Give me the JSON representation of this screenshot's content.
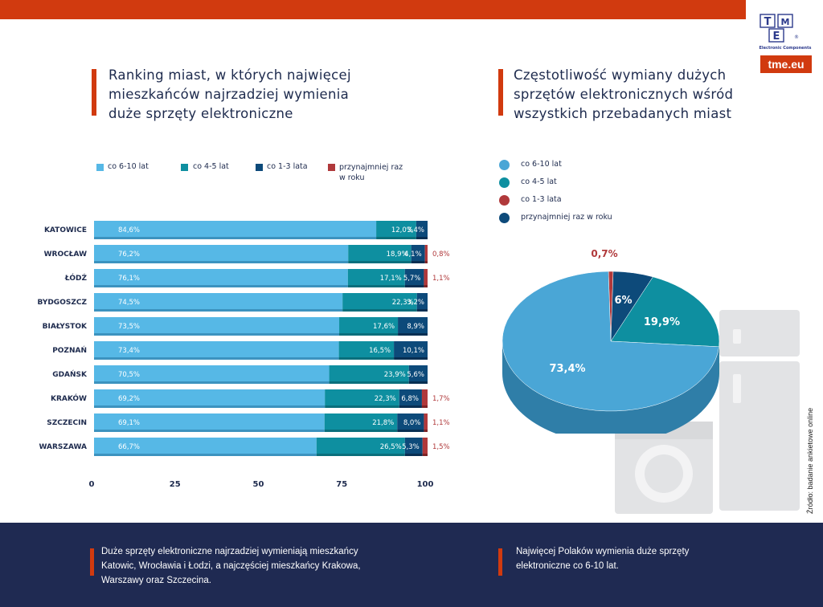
{
  "brand": {
    "logo_text": "TME",
    "logo_sub": "Electronic Components",
    "url": "tme.eu"
  },
  "left_title": [
    "Ranking miast, w których najwięcej",
    "mieszkańców najrzadziej wymienia",
    "duże sprzęty elektroniczne"
  ],
  "right_title": [
    "Częstotliwość wymiany dużych",
    "sprzętów elektronicznych wśród",
    "wszystkich przebadanych miast"
  ],
  "colors": {
    "c610": "#56b8e6",
    "c45": "#0e8fa0",
    "c13": "#0d4a7a",
    "cyear": "#b0393b",
    "accent": "#d13a0f",
    "navy": "#1f2a52"
  },
  "bar_legend": [
    {
      "label": "co 6-10 lat",
      "color": "#56b8e6"
    },
    {
      "label": "co 4-5 lat",
      "color": "#0e8fa0"
    },
    {
      "label": "co 1-3 lata",
      "color": "#0d4a7a"
    },
    {
      "label": "przynajmniej raz w roku",
      "color": "#b0393b"
    }
  ],
  "pie_legend": [
    {
      "label": "co 6-10 lat",
      "color": "#4aa6d6"
    },
    {
      "label": "co 4-5 lat",
      "color": "#0e8fa0"
    },
    {
      "label": "co 1-3 lata",
      "color": "#b0393b"
    },
    {
      "label": "przynajmniej raz w roku",
      "color": "#0d4a7a"
    }
  ],
  "chart_data": [
    {
      "type": "bar",
      "orientation": "horizontal-stacked",
      "categories": [
        "KATOWICE",
        "WROCŁAW",
        "ŁÓDŹ",
        "BYDGOSZCZ",
        "BIAŁYSTOK",
        "POZNAŃ",
        "GDAŃSK",
        "KRAKÓW",
        "SZCZECIN",
        "WARSZAWA"
      ],
      "series": [
        {
          "name": "co 6-10 lat",
          "values": [
            84.6,
            76.2,
            76.1,
            74.5,
            73.5,
            73.4,
            70.5,
            69.2,
            69.1,
            66.7
          ],
          "labels": [
            "84,6%",
            "76,2%",
            "76,1%",
            "74,5%",
            "73,5%",
            "73,4%",
            "70,5%",
            "69,2%",
            "69,1%",
            "66,7%"
          ]
        },
        {
          "name": "co 4-5 lat",
          "values": [
            12.0,
            18.9,
            17.1,
            22.3,
            17.6,
            16.5,
            23.9,
            22.3,
            21.8,
            26.5
          ],
          "labels": [
            "12,0%",
            "18,9%",
            "17,1%",
            "22,3%",
            "17,6%",
            "16,5%",
            "23,9%",
            "22,3%",
            "21,8%",
            "26,5%"
          ]
        },
        {
          "name": "co 1-3 lata",
          "values": [
            3.4,
            4.1,
            5.7,
            3.2,
            8.9,
            10.1,
            5.6,
            6.8,
            8.0,
            5.3
          ],
          "labels": [
            "3,4%",
            "4,1%",
            "5,7%",
            "3,2%",
            "8,9%",
            "10,1%",
            "5,6%",
            "6,8%",
            "8,0%",
            "5,3%"
          ]
        },
        {
          "name": "przynajmniej raz w roku",
          "values": [
            0,
            0.8,
            1.1,
            0,
            0,
            0,
            0,
            1.7,
            1.1,
            1.5
          ],
          "labels": [
            "",
            "0,8%",
            "1,1%",
            "",
            "",
            "",
            "",
            "1,7%",
            "1,1%",
            "1,5%"
          ]
        }
      ],
      "xticks": [
        "0",
        "25",
        "50",
        "75",
        "100"
      ],
      "xlim": [
        0,
        100
      ]
    },
    {
      "type": "pie",
      "slices": [
        {
          "label": "co 6-10 lat",
          "value": 73.4,
          "text": "73,4%",
          "color": "#4aa6d6"
        },
        {
          "label": "co 4-5 lat",
          "value": 19.9,
          "text": "19,9%",
          "color": "#0e8fa0"
        },
        {
          "label": "przynajmniej raz w roku",
          "value": 6,
          "text": "6%",
          "color": "#0d4a7a"
        },
        {
          "label": "co 1-3 lata",
          "value": 0.7,
          "text": "0,7%",
          "color": "#b0393b"
        }
      ]
    }
  ],
  "footer": {
    "left": [
      "Duże sprzęty elektroniczne najrzadziej wymieniają mieszkańcy",
      "Katowic, Wrocławia  i Łodzi, a najczęściej mieszkańcy Krakowa,",
      "Warszawy oraz Szczecina."
    ],
    "right": [
      "Najwięcej Polaków wymienia duże sprzęty",
      "elektroniczne co 6-10 lat."
    ]
  },
  "source": "Źródło: badanie ankietowe online"
}
